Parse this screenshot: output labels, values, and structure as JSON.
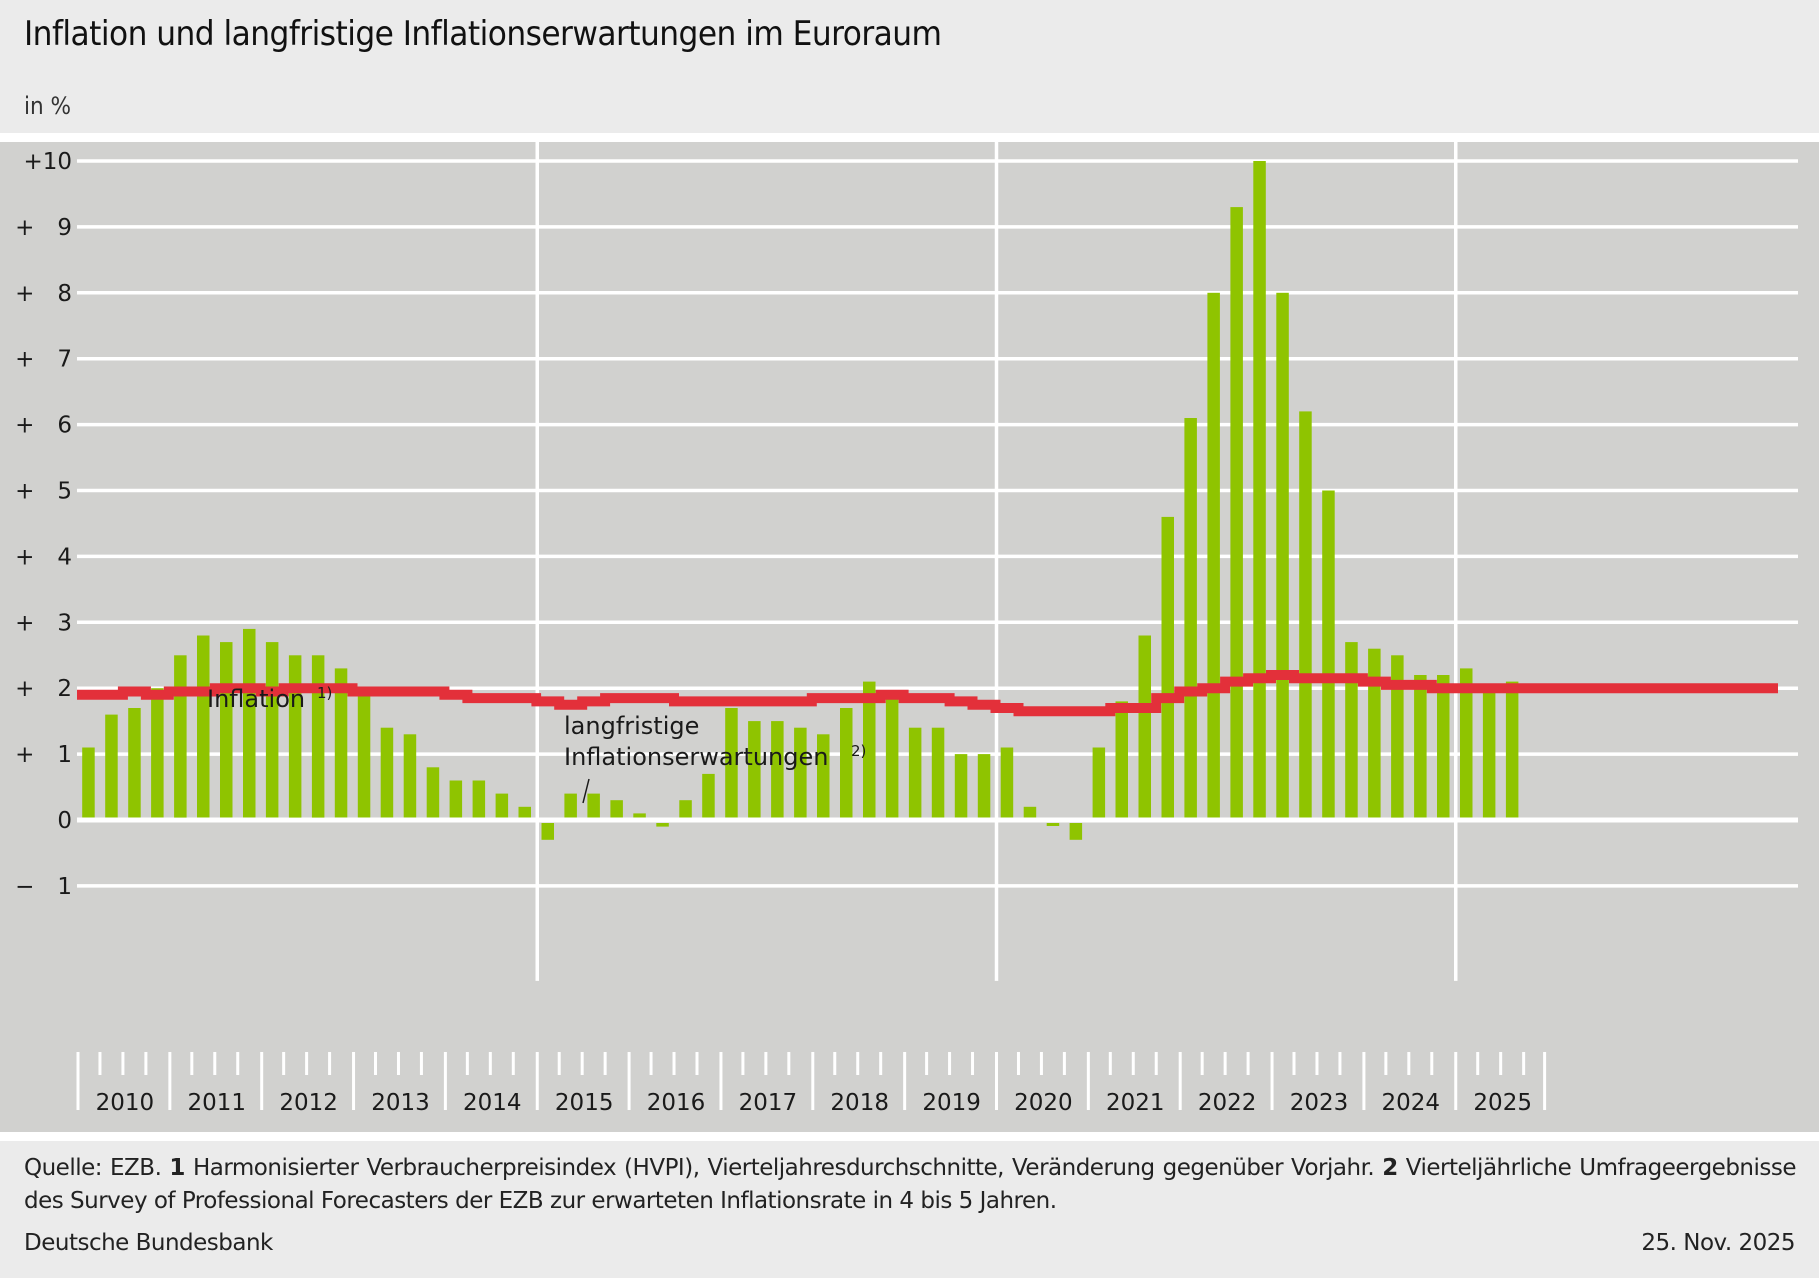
{
  "header": {
    "title": "Inflation und langfristige Inflationserwartungen im Euroraum",
    "unit": "in %"
  },
  "chart_data": {
    "type": "bar",
    "title": "Inflation und langfristige Inflationserwartungen im Euroraum",
    "ylabel": "in %",
    "xlabel": "",
    "ylim": [
      -1,
      10
    ],
    "yticks": [
      10,
      9,
      8,
      7,
      6,
      5,
      4,
      3,
      2,
      1,
      0,
      -1
    ],
    "ytick_labels": [
      "+10",
      "+  9",
      "+  8",
      "+  7",
      "+  6",
      "+  5",
      "+  4",
      "+  3",
      "+  2",
      "+  1",
      "0",
      "−  1"
    ],
    "grid": true,
    "frequency": "quarterly",
    "start_period": "2010 Q1",
    "years": [
      "2010",
      "2011",
      "2012",
      "2013",
      "2014",
      "2015",
      "2016",
      "2017",
      "2018",
      "2019",
      "2020",
      "2021",
      "2022",
      "2023",
      "2024",
      "2025"
    ],
    "major_gridline_years": [
      "2015",
      "2020",
      "2025"
    ],
    "colors": {
      "inflation": "#8fc400",
      "expectations": "#e3303a",
      "background": "#d1d1cf",
      "grid": "#ffffff"
    },
    "series": [
      {
        "name": "Inflation",
        "footnote": "1)",
        "type": "bar",
        "values": [
          1.1,
          1.6,
          1.7,
          2.0,
          2.5,
          2.8,
          2.7,
          2.9,
          2.7,
          2.5,
          2.5,
          2.3,
          1.9,
          1.4,
          1.3,
          0.8,
          0.6,
          0.6,
          0.4,
          0.2,
          -0.3,
          0.4,
          0.4,
          0.3,
          0.1,
          -0.1,
          0.3,
          0.7,
          1.7,
          1.5,
          1.5,
          1.4,
          1.3,
          1.7,
          2.1,
          1.9,
          1.4,
          1.4,
          1.0,
          1.0,
          1.1,
          0.2,
          -0.05,
          -0.3,
          1.1,
          1.8,
          2.8,
          4.6,
          6.1,
          8.0,
          9.3,
          10.0,
          8.0,
          6.2,
          5.0,
          2.7,
          2.6,
          2.5,
          2.2,
          2.2,
          2.3,
          2.0,
          2.1
        ]
      },
      {
        "name": "langfristige Inflationserwartungen",
        "footnote": "2)",
        "type": "line",
        "values": [
          1.9,
          1.9,
          1.95,
          1.9,
          1.95,
          1.95,
          2.0,
          2.0,
          1.95,
          2.0,
          2.0,
          2.0,
          1.95,
          1.95,
          1.95,
          1.95,
          1.9,
          1.85,
          1.85,
          1.85,
          1.8,
          1.75,
          1.8,
          1.85,
          1.85,
          1.85,
          1.8,
          1.8,
          1.8,
          1.8,
          1.8,
          1.8,
          1.85,
          1.85,
          1.85,
          1.9,
          1.85,
          1.85,
          1.8,
          1.75,
          1.7,
          1.65,
          1.65,
          1.65,
          1.65,
          1.7,
          1.7,
          1.85,
          1.95,
          2.0,
          2.1,
          2.15,
          2.2,
          2.15,
          2.15,
          2.15,
          2.1,
          2.05,
          2.05,
          2.0,
          2.0,
          2.0,
          2.0,
          2.0
        ]
      }
    ],
    "annotations": [
      {
        "text": "Inflation",
        "sup": "1)"
      },
      {
        "text": "langfristige",
        "text2": "Inflationserwartungen",
        "sup": "2)"
      }
    ]
  },
  "footer": {
    "source_prefix": "Quelle: EZB. ",
    "note1_num": "1",
    "note1_text": " Harmonisierter Verbraucherpreisindex (HVPI), Vierteljahresdurchschnitte, Veränderung gegenüber Vorjahr. ",
    "note2_num": "2",
    "note2_text": " Vierteljährliche Umfrage­ergebnisse des Survey of Professional Forecasters der EZB zur erwarteten Inflationsrate in 4 bis 5 Jahren.",
    "organization": "Deutsche Bundesbank",
    "date": "25. Nov. 2025"
  }
}
